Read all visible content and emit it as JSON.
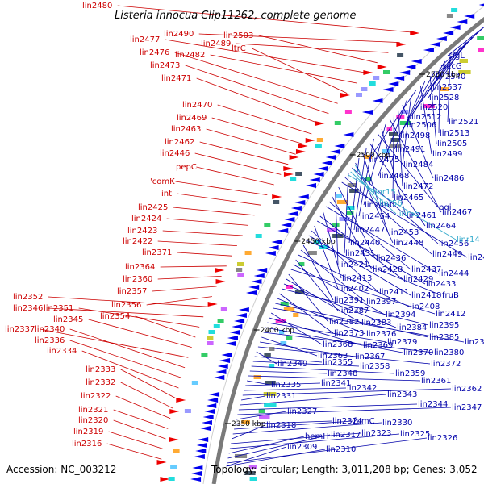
{
  "title": "Listeria innocua Clip11262, complete genome",
  "accession_text": "Accession: NC_003212",
  "topology_text": "Topology: circular; Length: 3,011,208 bp; Genes: 3,052",
  "colors": {
    "left_label": "#cc0000",
    "right_label": "#0000aa",
    "rna_label": "#33aacc",
    "left_arrow": "#ee0000",
    "right_arrow": "#0000ee",
    "backbone": "#7a7a7a"
  },
  "kbp_marks": [
    "2550 kbp",
    "2500 kbp",
    "2450 kbp",
    "2400 kbp",
    "2350 kbp"
  ],
  "left_labels": [
    "lin2480",
    "lin2490",
    "lin2489",
    "lin2503",
    "lin2477",
    "lin2482",
    "ltrC",
    "lin2476",
    "lin2473",
    "lin2471",
    "lin2470",
    "lin2469",
    "lin2463",
    "lin2462",
    "lin2446",
    "pepC",
    "'comK",
    "int",
    "lin2425",
    "lin2424",
    "lin2423",
    "lin2422",
    "lin2371",
    "lin2364",
    "lin2360",
    "lin2357",
    "lin2356",
    "lin2352",
    "lin2346",
    "lin2351",
    "lin2354",
    "lin2345",
    "lin2337",
    "lin2340",
    "lin2336",
    "lin2334",
    "lin2333",
    "lin2332",
    "lin2322",
    "lin2321",
    "lin2320",
    "lin2319",
    "lin2316"
  ],
  "right_labels": [
    "sigL",
    "secG",
    "lin2540",
    "lin2537",
    "lin2528",
    "lin2520",
    "lin2512",
    "lin2521",
    "lin2506",
    "lin2513",
    "lin2498",
    "lin2505",
    "lin2491",
    "lin2499",
    "lin2475",
    "lin2484",
    "lin2468",
    "lin2486",
    "lin2472",
    "lin2465",
    "lin2467",
    "lin2460",
    "lin2461",
    "pgi",
    "lin2454",
    "lin2464",
    "lin2447",
    "lin2453",
    "lin2440",
    "lin2448",
    "lin2456",
    "lin2431",
    "lin2449",
    "lin2455",
    "lin2436",
    "lin2421",
    "lin2428",
    "lin2437",
    "lin2444",
    "lin2413",
    "lin2429",
    "lin2433",
    "lin2402",
    "lin2411",
    "lin2418",
    "fruB",
    "lin2391",
    "lin2397",
    "lin2408",
    "lin2387",
    "lin2394",
    "lin2412",
    "lin2382",
    "lin2383",
    "lin2384",
    "lin2395",
    "lin2373",
    "lin2376",
    "lin2385",
    "lin2392",
    "lin2368",
    "lin2369",
    "lin2379",
    "lin2370",
    "lin2380",
    "lin2363",
    "lin2367",
    "lin2372",
    "lin2349",
    "lin2355",
    "lin2358",
    "lin2359",
    "lin2348",
    "lin2361",
    "lin2335",
    "lin2341",
    "lin2342",
    "lin2362",
    "lin2331",
    "lin2343",
    "lin2344",
    "lin2347",
    "lin2327",
    "lin2324",
    "fumC",
    "lin2330",
    "lin2318",
    "lin2323",
    "lin2325",
    "hemH",
    "lin2317",
    "lin2326",
    "lin2309",
    "lin2310"
  ],
  "rna_labels": [
    "linr15",
    "linr56",
    "linr55",
    "linr14"
  ]
}
